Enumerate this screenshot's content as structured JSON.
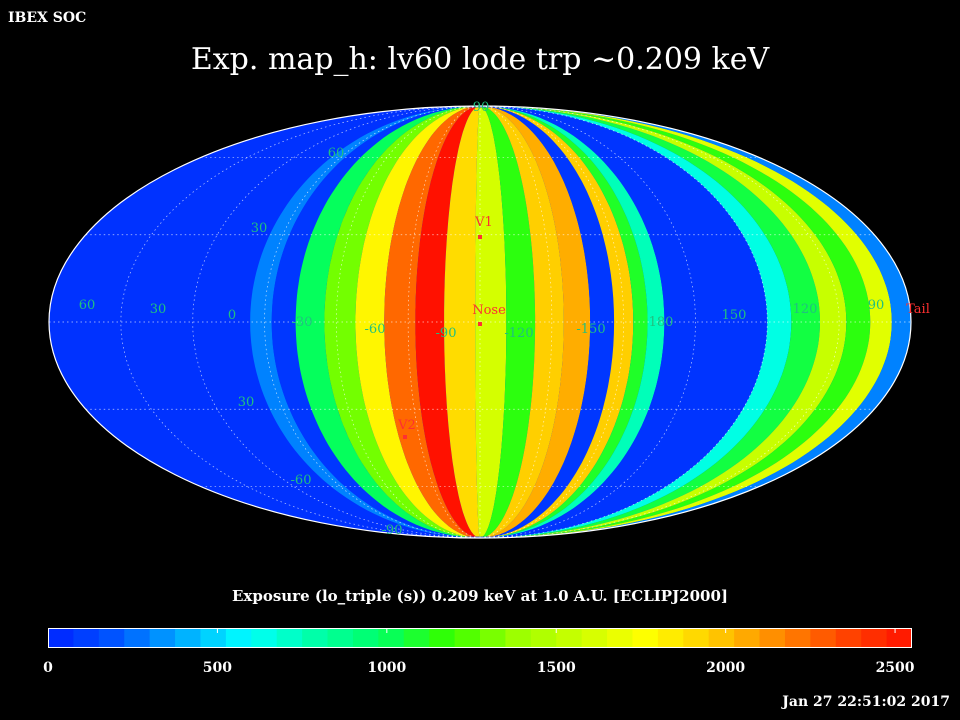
{
  "header": {
    "org": "IBEX SOC",
    "title": "Exp.   map_h: lv60 lode trp ~0.209 keV",
    "subtitle": "Exposure (lo_triple (s))  0.209 keV at 1.0 A.U. [ECLIPJ2000]",
    "timestamp": "Jan 27 22:51:02 2017"
  },
  "chart_data": {
    "type": "heatmap",
    "projection": "Mollweide (all-sky)",
    "title": "Exp.   map_h: lv60 lode trp ~0.209 keV",
    "colorbar_label": "Exposure (lo_triple (s))  0.209 keV at 1.0 A.U. [ECLIPJ2000]",
    "colorbar": {
      "range": [
        0,
        2550
      ],
      "ticks": [
        0,
        500,
        1000,
        1500,
        2000,
        2500
      ],
      "colors": [
        "#0022ff",
        "#0055ff",
        "#00aaff",
        "#00ffff",
        "#00ffaa",
        "#00ff66",
        "#33ff00",
        "#99ff00",
        "#ccff00",
        "#ffff00",
        "#ffcc00",
        "#ff8800",
        "#ff4400",
        "#ff1100"
      ]
    },
    "longitude_labels": [
      "60",
      "30",
      "0",
      "-30",
      "-60",
      "-90",
      "-120",
      "-150",
      "180",
      "150",
      "120",
      "90"
    ],
    "latitude_labels": [
      "90",
      "60",
      "30",
      "30",
      "-60",
      "-90"
    ],
    "markers": [
      "V1",
      "Nose",
      "V2",
      "Tail"
    ],
    "background_exposure": 60,
    "strips": [
      {
        "lon_from": 84,
        "lon_to": 93,
        "lat_from": -89,
        "lat_to": 89,
        "value": 300
      },
      {
        "lon_from": 93,
        "lon_to": 103,
        "lat_from": -90,
        "lat_to": 90,
        "value": 80
      },
      {
        "lon_from": 103,
        "lon_to": 115,
        "lat_from": -89,
        "lat_to": 89,
        "value": 1000
      },
      {
        "lon_from": 115,
        "lon_to": 128,
        "lat_from": -88,
        "lat_to": 88,
        "value": 1300
      },
      {
        "lon_from": 128,
        "lon_to": 140,
        "lat_from": -88,
        "lat_to": 88,
        "value": 1800
      },
      {
        "lon_from": 140,
        "lon_to": 153,
        "lat_from": -88,
        "lat_to": 88,
        "value": 2250
      },
      {
        "lon_from": 153,
        "lon_to": 165,
        "lat_from": -88,
        "lat_to": 88,
        "value": 2550
      },
      {
        "lon_from": 165,
        "lon_to": 178,
        "lat_from": -88,
        "lat_to": 88,
        "value": 1900
      },
      {
        "lon_from": 178,
        "lon_to": 191,
        "lat_from": -88,
        "lat_to": 88,
        "value": 1600
      },
      {
        "lon_from": 191,
        "lon_to": 203,
        "lat_from": -88,
        "lat_to": 88,
        "value": 1150
      },
      {
        "lon_from": 203,
        "lon_to": 215,
        "lat_from": -88,
        "lat_to": 88,
        "value": 1950
      },
      {
        "lon_from": 215,
        "lon_to": 226,
        "lat_from": -88,
        "lat_to": 88,
        "value": 2050
      },
      {
        "lon_from": 226,
        "lon_to": 236,
        "lat_from": -88,
        "lat_to": 88,
        "value": 80
      },
      {
        "lon_from": 236,
        "lon_to": 244,
        "lat_from": -88,
        "lat_to": 88,
        "value": 1950
      },
      {
        "lon_from": 244,
        "lon_to": 250,
        "lat_from": -88,
        "lat_to": 88,
        "value": 1100
      },
      {
        "lon_from": 250,
        "lon_to": 257,
        "lat_from": -88,
        "lat_to": 88,
        "value": 750
      },
      {
        "lon_from": 257,
        "lon_to": 300,
        "lat_from": -90,
        "lat_to": 90,
        "value": 70
      },
      {
        "lon_from": 300,
        "lon_to": 310,
        "lat_from": -88,
        "lat_to": 88,
        "value": 650
      },
      {
        "lon_from": 310,
        "lon_to": 322,
        "lat_from": -88,
        "lat_to": 88,
        "value": 1050
      },
      {
        "lon_from": 322,
        "lon_to": 333,
        "lat_from": -88,
        "lat_to": 88,
        "value": 1550
      },
      {
        "lon_from": 333,
        "lon_to": 343,
        "lat_from": -88,
        "lat_to": 88,
        "value": 1150
      },
      {
        "lon_from": 343,
        "lon_to": 352,
        "lat_from": -88,
        "lat_to": 88,
        "value": 1650
      },
      {
        "lon_from": 352,
        "lon_to": 360,
        "lat_from": -88,
        "lat_to": 88,
        "value": 300
      }
    ]
  }
}
